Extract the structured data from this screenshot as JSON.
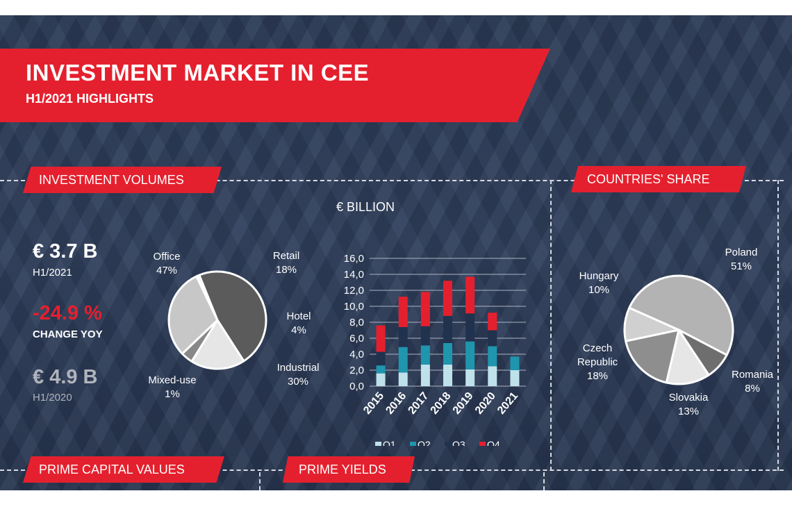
{
  "header": {
    "title": "INVESTMENT MARKET IN CEE",
    "subtitle": "H1/2021 HIGHLIGHTS"
  },
  "sections": {
    "investment_volumes": "INVESTMENT VOLUMES",
    "countries_share": "COUNTRIES' SHARE",
    "prime_capital_values": "PRIME CAPITAL VALUES",
    "prime_yields": "PRIME YIELDS"
  },
  "kpis": {
    "current_value": "€ 3.7 B",
    "current_period": "H1/2021",
    "change_value": "-24.9 %",
    "change_label": "CHANGE YOY",
    "previous_value": "€ 4.9 B",
    "previous_period": "H1/2020"
  },
  "colors": {
    "accent": "#e5202e",
    "background": "#2b3a55",
    "q1": "#bfe1ea",
    "q2": "#1f95ae",
    "q3": "#21324e",
    "q4": "#e5202e"
  },
  "chart_data": [
    {
      "type": "pie",
      "slices": [
        {
          "label": "Office",
          "value": 47,
          "text": "47%",
          "color": "#5b5b5b"
        },
        {
          "label": "Retail",
          "value": 18,
          "text": "18%",
          "color": "#e6e6e6"
        },
        {
          "label": "Hotel",
          "value": 4,
          "text": "4%",
          "color": "#888888"
        },
        {
          "label": "Industrial",
          "value": 30,
          "text": "30%",
          "color": "#c7c7c7"
        },
        {
          "label": "Mixed-use",
          "value": 1,
          "text": "1%",
          "color": "#f2f2f2"
        }
      ]
    },
    {
      "type": "bar",
      "stacked": true,
      "title": "€ BILLION",
      "categories": [
        "2015",
        "2016",
        "2017",
        "2018",
        "2019",
        "2020",
        "2021"
      ],
      "series": [
        {
          "name": "Q1",
          "values": [
            1.6,
            1.7,
            2.7,
            2.7,
            2.1,
            2.5,
            2.0
          ]
        },
        {
          "name": "Q2",
          "values": [
            1.0,
            3.2,
            2.4,
            2.7,
            3.5,
            2.5,
            1.7
          ]
        },
        {
          "name": "Q3",
          "values": [
            1.7,
            2.5,
            2.4,
            3.4,
            3.5,
            2.0,
            0
          ]
        },
        {
          "name": "Q4",
          "values": [
            3.3,
            3.8,
            4.3,
            4.4,
            4.6,
            2.2,
            0
          ]
        }
      ],
      "yticks": [
        "16,0",
        "14,0",
        "12,0",
        "10,0",
        "8,0",
        "6,0",
        "4,0",
        "2,0",
        "0,0"
      ],
      "ylim": [
        0,
        16
      ],
      "grid": true,
      "legend": "bottom"
    },
    {
      "type": "pie",
      "slices": [
        {
          "label": "Poland",
          "value": 51,
          "text": "51%",
          "color": "#b3b3b3"
        },
        {
          "label": "Romania",
          "value": 8,
          "text": "8%",
          "color": "#6e6e6e"
        },
        {
          "label": "Slovakia",
          "value": 13,
          "text": "13%",
          "color": "#e6e6e6"
        },
        {
          "label": "Czech Republic",
          "value": 18,
          "text": "18%",
          "color": "#8e8e8e"
        },
        {
          "label": "Hungary",
          "value": 10,
          "text": "10%",
          "color": "#d0d0d0"
        }
      ]
    }
  ]
}
